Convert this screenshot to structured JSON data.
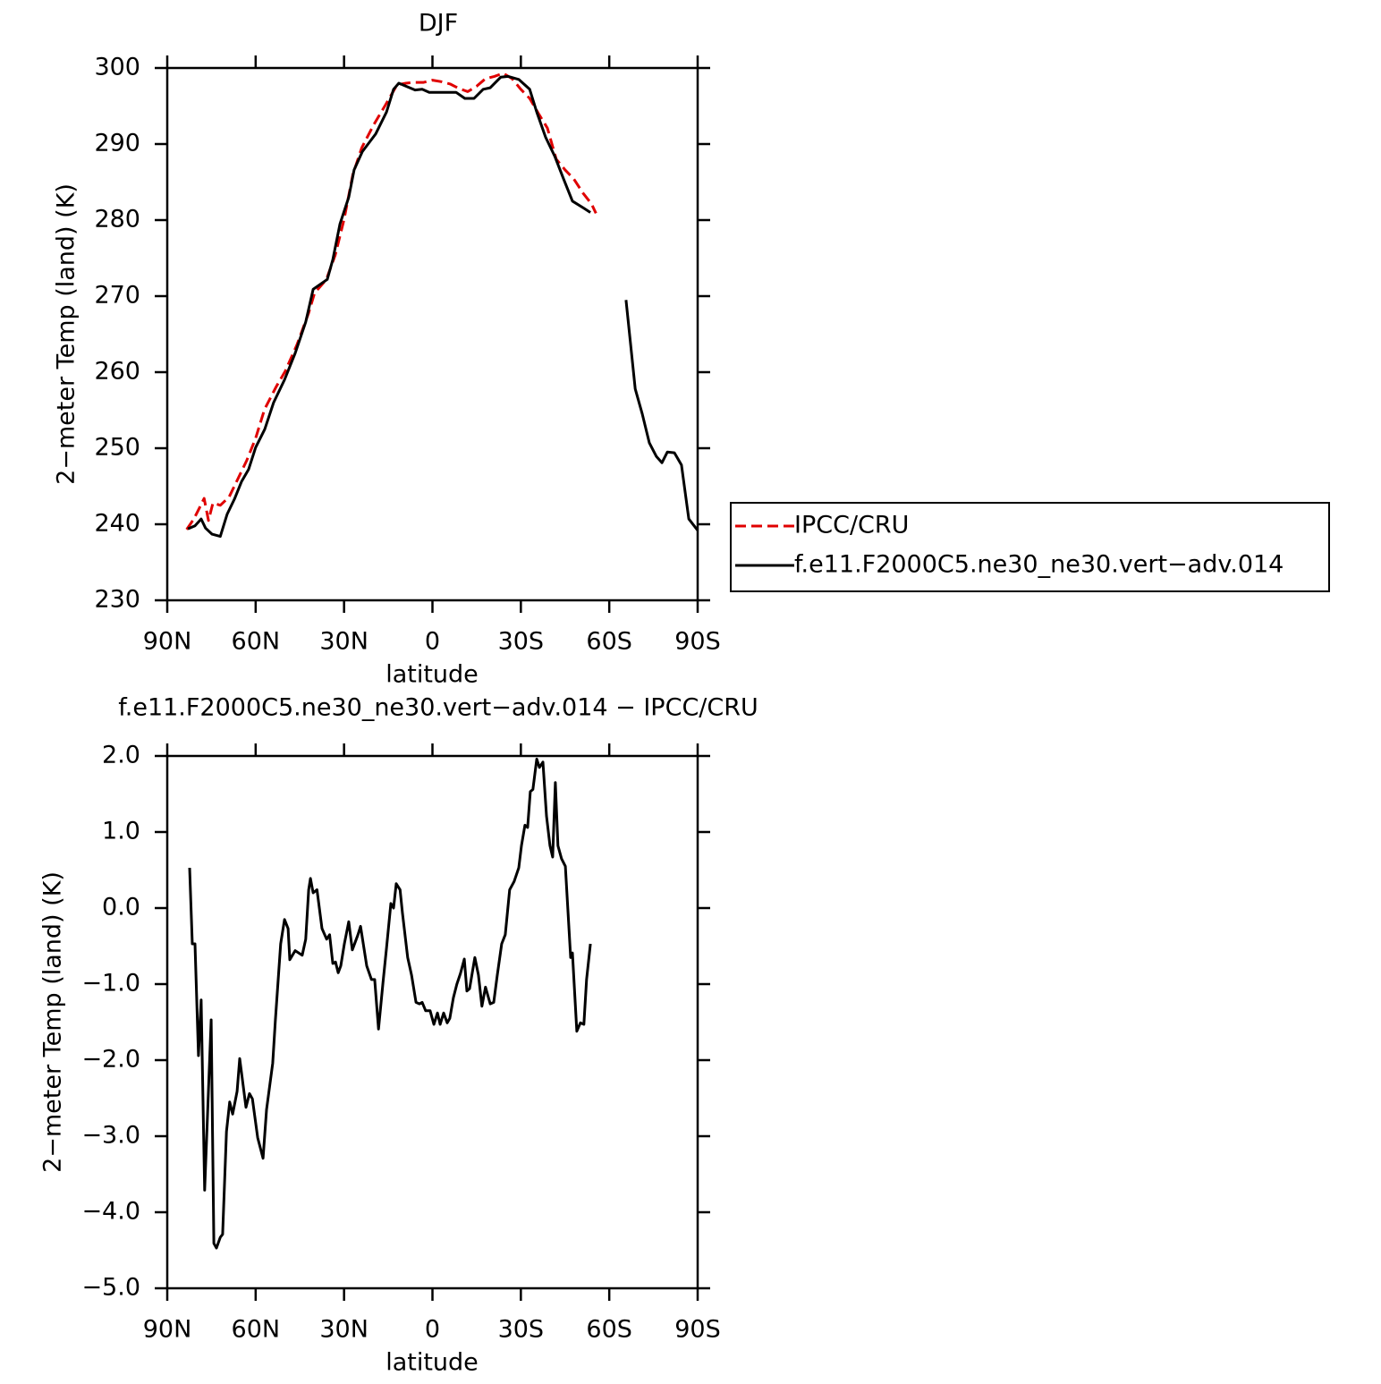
{
  "chart_data": [
    {
      "type": "line",
      "title": "DJF",
      "xlabel": "latitude",
      "ylabel": "2−meter Temp (land) (K)",
      "xlim": [
        90,
        -90
      ],
      "ylim": [
        230,
        300
      ],
      "xticks": [
        {
          "value": 90,
          "label": "90N"
        },
        {
          "value": 60,
          "label": "60N"
        },
        {
          "value": 30,
          "label": "30N"
        },
        0,
        {
          "value": -30,
          "label": "30S"
        },
        {
          "value": -60,
          "label": "60S"
        },
        {
          "value": -90,
          "label": "90S"
        }
      ],
      "yticks": [
        230,
        240,
        250,
        260,
        270,
        280,
        290,
        300
      ],
      "legend": "right",
      "series": [
        {
          "name": "IPCC/CRU",
          "color": "#e00000",
          "linestyle": "dashed",
          "x": [
            83.4,
            81,
            79,
            77.5,
            76,
            74.5,
            72,
            69,
            66,
            63,
            60,
            57,
            53,
            50,
            46,
            42,
            40,
            36,
            33,
            30,
            27,
            24,
            20,
            16,
            12,
            9,
            6,
            3,
            0,
            -3,
            -6,
            -9,
            -12,
            -15,
            -18,
            -21,
            -24,
            -27,
            -30,
            -33,
            -36,
            -39,
            -42,
            -45,
            -48,
            -51,
            -54,
            -55.5
          ],
          "values": [
            239.3,
            240.7,
            242.2,
            243.4,
            240.5,
            242.8,
            242.5,
            243.6,
            246,
            248.4,
            251.3,
            255.1,
            258.1,
            260.1,
            263.6,
            267.8,
            270.4,
            272.2,
            275.4,
            280.1,
            286,
            289.5,
            292.5,
            295.1,
            297.8,
            298,
            298.1,
            298.1,
            298.4,
            298.2,
            297.9,
            297.3,
            296.9,
            297.6,
            298.6,
            298.9,
            299.3,
            298.6,
            297.2,
            296,
            294,
            292.1,
            288,
            286.6,
            285.4,
            283.6,
            282.1,
            280.9
          ]
        },
        {
          "name": "f.e11.F2000C5.ne30_ne30.vert−adv.014",
          "color": "#000000",
          "linestyle": "solid",
          "x": [
            83,
            80.6,
            78.5,
            77,
            74.8,
            72,
            69.7,
            67.2,
            64.8,
            62.4,
            60,
            56.9,
            53.9,
            50.2,
            46.6,
            43,
            40.5,
            35.7,
            33.8,
            31.4,
            28.4,
            26.6,
            23.8,
            19.3,
            15.6,
            13.2,
            11.4,
            5.9,
            3.5,
            1.1,
            -2,
            -8,
            -11,
            -14.1,
            -17.2,
            -19.6,
            -23.2,
            -25.7,
            -29.3,
            -33,
            -35.4,
            -38.4,
            -41.5,
            -44.5,
            -47.5,
            -51.2,
            -53.6,
            -60,
            -65.7,
            -68.8,
            -71.2,
            -73.6,
            -76,
            -77.9,
            -79.7,
            -82.1,
            -84.5,
            -87,
            -90
          ],
          "values": [
            239.4,
            239.8,
            240.7,
            239.5,
            238.7,
            238.4,
            241.3,
            243.3,
            245.6,
            247.2,
            250.1,
            252.5,
            256,
            259,
            262.5,
            266.6,
            270.9,
            272.2,
            274.8,
            279.5,
            283,
            286.6,
            289,
            291.3,
            294.2,
            297.2,
            298,
            297.1,
            297.2,
            296.8,
            296.8,
            296.8,
            296,
            296,
            297.2,
            297.4,
            298.8,
            298.9,
            298.5,
            297.2,
            294.2,
            290.9,
            288.4,
            285.4,
            282.5,
            281.6,
            281,
            null,
            269.5,
            257.8,
            254.5,
            250.7,
            248.9,
            248.1,
            249.5,
            249.4,
            247.8,
            240.7,
            239.2
          ]
        }
      ]
    },
    {
      "type": "line",
      "title": "f.e11.F2000C5.ne30_ne30.vert−adv.014 − IPCC/CRU",
      "xlabel": "latitude",
      "ylabel": "2−meter Temp (land) (K)",
      "xlim": [
        90,
        -90
      ],
      "ylim": [
        -5,
        2
      ],
      "xticks": [
        {
          "value": 90,
          "label": "90N"
        },
        {
          "value": 60,
          "label": "60N"
        },
        {
          "value": 30,
          "label": "30N"
        },
        0,
        {
          "value": -30,
          "label": "30S"
        },
        {
          "value": -60,
          "label": "60S"
        },
        {
          "value": -90,
          "label": "90S"
        }
      ],
      "yticks": [
        {
          "value": -5,
          "label": "−5.0"
        },
        {
          "value": -4,
          "label": "−4.0"
        },
        {
          "value": -3,
          "label": "−3.0"
        },
        {
          "value": -2,
          "label": "−2.0"
        },
        {
          "value": -1,
          "label": "−1.0"
        },
        {
          "value": 0,
          "label": "0.0"
        },
        {
          "value": 1,
          "label": "1.0"
        },
        {
          "value": 2,
          "label": "2.0"
        }
      ],
      "series": [
        {
          "color": "#000000",
          "linestyle": "solid",
          "x": [
            82.4,
            81.5,
            80.6,
            79.4,
            78.5,
            77.3,
            75.1,
            74.2,
            73.3,
            72,
            71.2,
            69.9,
            68.8,
            67.8,
            66.3,
            65.4,
            63.3,
            62.1,
            61.1,
            59.3,
            57.5,
            56.3,
            54.2,
            53.3,
            51.5,
            50.2,
            49,
            48.4,
            46.6,
            44.2,
            43,
            42,
            41.4,
            40.5,
            39.2,
            37.5,
            35.9,
            34.9,
            33.8,
            32.9,
            32,
            31.1,
            29.9,
            28.4,
            27.2,
            25.3,
            24.4,
            22.3,
            20.7,
            19.6,
            18.3,
            16.8,
            15.6,
            14.1,
            13.2,
            12.3,
            11,
            10.2,
            8.4,
            7.1,
            5.6,
            4.4,
            3.5,
            2.3,
            0.8,
            -0.5,
            -1.7,
            -2.6,
            -3.8,
            -5,
            -5.9,
            -7.1,
            -8.3,
            -9.5,
            -10.8,
            -11.7,
            -12.6,
            -14.4,
            -15.6,
            -16.8,
            -18,
            -19.6,
            -20.8,
            -22,
            -23.5,
            -24.7,
            -26.2,
            -27.7,
            -29.3,
            -30.2,
            -31.4,
            -32.3,
            -33.2,
            -34.1,
            -35.4,
            -36.3,
            -37.5,
            -38.7,
            -39.9,
            -40.8,
            -41.7,
            -42.6,
            -43.8,
            -45.1,
            -46.9,
            -47.5,
            -49,
            -50.2,
            -51.4,
            -52.3,
            -53.6
          ],
          "values": [
            0.53,
            -0.47,
            -0.47,
            -1.94,
            -1.21,
            -3.71,
            -1.47,
            -4.41,
            -4.47,
            -4.33,
            -4.29,
            -2.94,
            -2.55,
            -2.71,
            -2.41,
            -1.98,
            -2.62,
            -2.44,
            -2.51,
            -3.02,
            -3.29,
            -2.65,
            -2.04,
            -1.47,
            -0.47,
            -0.15,
            -0.27,
            -0.68,
            -0.56,
            -0.62,
            -0.41,
            0.24,
            0.39,
            0.2,
            0.24,
            -0.27,
            -0.41,
            -0.35,
            -0.73,
            -0.71,
            -0.85,
            -0.76,
            -0.47,
            -0.18,
            -0.55,
            -0.35,
            -0.24,
            -0.76,
            -0.94,
            -0.94,
            -1.59,
            -0.98,
            -0.53,
            0.06,
            0,
            0.32,
            0.24,
            -0.06,
            -0.65,
            -0.88,
            -1.24,
            -1.26,
            -1.24,
            -1.35,
            -1.35,
            -1.53,
            -1.38,
            -1.53,
            -1.38,
            -1.51,
            -1.45,
            -1.18,
            -1,
            -0.86,
            -0.67,
            -1.09,
            -1.06,
            -0.65,
            -0.88,
            -1.29,
            -1.04,
            -1.26,
            -1.24,
            -0.88,
            -0.47,
            -0.35,
            0.24,
            0.35,
            0.53,
            0.82,
            1.09,
            1.06,
            1.53,
            1.56,
            1.96,
            1.85,
            1.92,
            1.21,
            0.82,
            0.67,
            1.65,
            0.82,
            0.65,
            0.55,
            -0.65,
            -0.59,
            -1.62,
            -1.51,
            -1.53,
            -0.94,
            -0.47
          ]
        }
      ]
    }
  ]
}
